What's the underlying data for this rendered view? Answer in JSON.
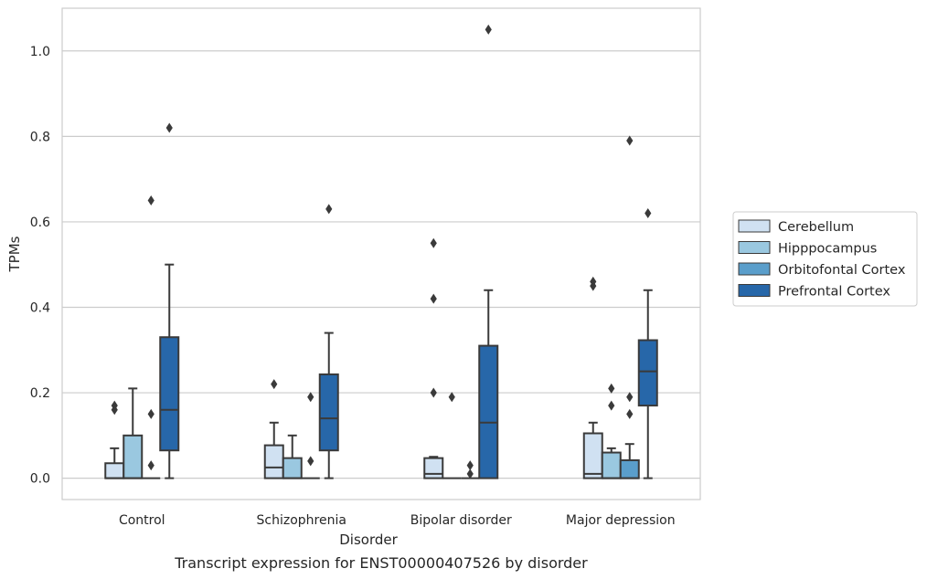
{
  "chart_data": {
    "type": "box",
    "title": "",
    "caption": "Transcript expression for ENST00000407526 by disorder",
    "xlabel": "Disorder",
    "ylabel": "TPMs",
    "ylim": [
      -0.05,
      1.1
    ],
    "yticks": [
      0.0,
      0.2,
      0.4,
      0.6,
      0.8,
      1.0
    ],
    "ytick_labels": [
      "0.0",
      "0.2",
      "0.4",
      "0.6",
      "0.8",
      "1.0"
    ],
    "grid": "horizontal",
    "legend_placement": "right",
    "categories": [
      "Control",
      "Schizophrenia",
      "Bipolar disorder",
      "Major depression"
    ],
    "series": [
      {
        "name": "Cerebellum",
        "color": "#d0e1f2",
        "boxes": [
          {
            "q1": 0.0,
            "median": 0.0,
            "q3": 0.035,
            "whisker_low": 0.0,
            "whisker_high": 0.07,
            "outliers": [
              0.16,
              0.17
            ]
          },
          {
            "q1": 0.0,
            "median": 0.025,
            "q3": 0.077,
            "whisker_low": 0.0,
            "whisker_high": 0.13,
            "outliers": [
              0.22
            ]
          },
          {
            "q1": 0.0,
            "median": 0.01,
            "q3": 0.047,
            "whisker_low": 0.0,
            "whisker_high": 0.05,
            "outliers": [
              0.2,
              0.42,
              0.55
            ]
          },
          {
            "q1": 0.0,
            "median": 0.01,
            "q3": 0.105,
            "whisker_low": 0.0,
            "whisker_high": 0.13,
            "outliers": [
              0.45,
              0.46
            ]
          }
        ]
      },
      {
        "name": "Hipppocampus",
        "color": "#9ac8e0",
        "boxes": [
          {
            "q1": 0.0,
            "median": 0.0,
            "q3": 0.1,
            "whisker_low": 0.0,
            "whisker_high": 0.21,
            "outliers": []
          },
          {
            "q1": 0.0,
            "median": 0.0,
            "q3": 0.047,
            "whisker_low": 0.0,
            "whisker_high": 0.1,
            "outliers": []
          },
          {
            "q1": 0.0,
            "median": 0.0,
            "q3": 0.0,
            "whisker_low": 0.0,
            "whisker_high": 0.0,
            "outliers": [
              0.19
            ]
          },
          {
            "q1": 0.0,
            "median": 0.0,
            "q3": 0.06,
            "whisker_low": 0.0,
            "whisker_high": 0.07,
            "outliers": [
              0.17,
              0.21
            ]
          }
        ]
      },
      {
        "name": "Orbitofontal Cortex",
        "color": "#5a9ecb",
        "boxes": [
          {
            "q1": 0.0,
            "median": 0.0,
            "q3": 0.0,
            "whisker_low": 0.0,
            "whisker_high": 0.0,
            "outliers": [
              0.03,
              0.15,
              0.65
            ]
          },
          {
            "q1": 0.0,
            "median": 0.0,
            "q3": 0.0,
            "whisker_low": 0.0,
            "whisker_high": 0.0,
            "outliers": [
              0.04,
              0.19
            ]
          },
          {
            "q1": 0.0,
            "median": 0.0,
            "q3": 0.0,
            "whisker_low": 0.0,
            "whisker_high": 0.0,
            "outliers": [
              0.01,
              0.03
            ]
          },
          {
            "q1": 0.0,
            "median": 0.0,
            "q3": 0.042,
            "whisker_low": 0.0,
            "whisker_high": 0.08,
            "outliers": [
              0.15,
              0.19,
              0.79
            ]
          }
        ]
      },
      {
        "name": "Prefrontal Cortex",
        "color": "#2767a9",
        "boxes": [
          {
            "q1": 0.065,
            "median": 0.16,
            "q3": 0.33,
            "whisker_low": 0.0,
            "whisker_high": 0.5,
            "outliers": [
              0.82
            ]
          },
          {
            "q1": 0.065,
            "median": 0.14,
            "q3": 0.243,
            "whisker_low": 0.0,
            "whisker_high": 0.34,
            "outliers": [
              0.63
            ]
          },
          {
            "q1": 0.0,
            "median": 0.13,
            "q3": 0.31,
            "whisker_low": 0.0,
            "whisker_high": 0.44,
            "outliers": [
              1.05
            ]
          },
          {
            "q1": 0.17,
            "median": 0.25,
            "q3": 0.323,
            "whisker_low": 0.0,
            "whisker_high": 0.44,
            "outliers": [
              0.62
            ]
          }
        ]
      }
    ]
  }
}
